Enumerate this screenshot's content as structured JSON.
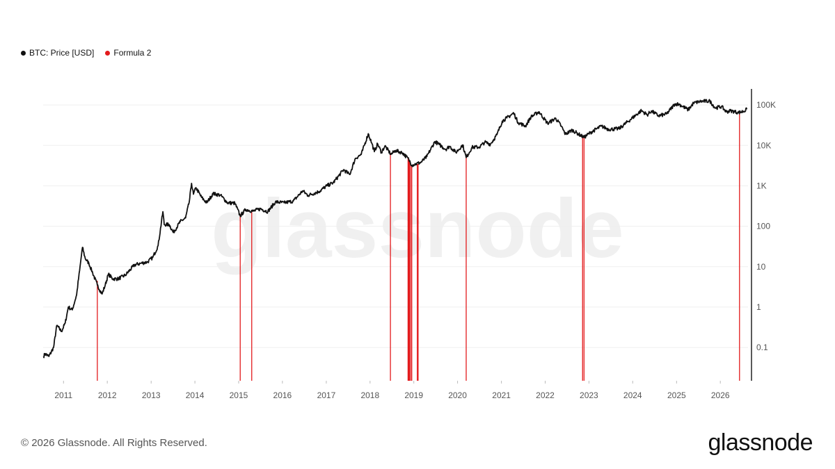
{
  "legend": [
    {
      "label": "BTC: Price [USD]",
      "color": "#111111"
    },
    {
      "label": "Formula 2",
      "color": "#e31a1c"
    }
  ],
  "watermark": "glassnode",
  "footer": {
    "copyright": "© 2026 Glassnode. All Rights Reserved.",
    "logo": "glassnode"
  },
  "chart_data": {
    "type": "line",
    "title": "",
    "xlabel": "",
    "ylabel": "",
    "y_scale": "log",
    "ylim": [
      0.015,
      250000
    ],
    "xlim": [
      "2010-07-15",
      "2026-08-20"
    ],
    "grid": true,
    "legend_position": "top-left",
    "x_ticks": [
      "2011",
      "2012",
      "2013",
      "2014",
      "2015",
      "2016",
      "2017",
      "2018",
      "2019",
      "2020",
      "2021",
      "2022",
      "2023",
      "2024",
      "2025",
      "2026"
    ],
    "y_ticks": [
      {
        "label": "0.1",
        "value": 0.1
      },
      {
        "label": "1",
        "value": 1
      },
      {
        "label": "10",
        "value": 10
      },
      {
        "label": "100",
        "value": 100
      },
      {
        "label": "1K",
        "value": 1000
      },
      {
        "label": "10K",
        "value": 10000
      },
      {
        "label": "100K",
        "value": 100000
      }
    ],
    "series": [
      {
        "name": "BTC: Price [USD]",
        "color": "#111111",
        "points": [
          [
            "2010-07-18",
            0.06
          ],
          [
            "2010-08-01",
            0.07
          ],
          [
            "2010-09-01",
            0.06
          ],
          [
            "2010-10-10",
            0.1
          ],
          [
            "2010-11-06",
            0.35
          ],
          [
            "2010-12-15",
            0.25
          ],
          [
            "2011-01-15",
            0.4
          ],
          [
            "2011-02-10",
            1.0
          ],
          [
            "2011-03-15",
            0.85
          ],
          [
            "2011-04-20",
            2.0
          ],
          [
            "2011-05-15",
            8.0
          ],
          [
            "2011-06-08",
            30.0
          ],
          [
            "2011-07-01",
            16.0
          ],
          [
            "2011-08-01",
            12.0
          ],
          [
            "2011-09-01",
            7.0
          ],
          [
            "2011-10-10",
            3.5
          ],
          [
            "2011-11-18",
            2.1
          ],
          [
            "2011-12-15",
            3.5
          ],
          [
            "2012-01-10",
            6.5
          ],
          [
            "2012-02-15",
            5.0
          ],
          [
            "2012-04-01",
            5.0
          ],
          [
            "2012-06-01",
            6.2
          ],
          [
            "2012-08-15",
            11.0
          ],
          [
            "2012-10-01",
            12.0
          ],
          [
            "2012-12-01",
            13.0
          ],
          [
            "2013-01-15",
            17.0
          ],
          [
            "2013-02-28",
            33.0
          ],
          [
            "2013-04-09",
            230.0
          ],
          [
            "2013-04-20",
            110.0
          ],
          [
            "2013-06-01",
            110.0
          ],
          [
            "2013-07-05",
            70.0
          ],
          [
            "2013-09-01",
            130.0
          ],
          [
            "2013-10-15",
            160.0
          ],
          [
            "2013-11-15",
            400.0
          ],
          [
            "2013-12-04",
            1150.0
          ],
          [
            "2013-12-20",
            620.0
          ],
          [
            "2014-01-10",
            900.0
          ],
          [
            "2014-02-25",
            520.0
          ],
          [
            "2014-04-10",
            380.0
          ],
          [
            "2014-06-01",
            640.0
          ],
          [
            "2014-08-01",
            590.0
          ],
          [
            "2014-10-01",
            380.0
          ],
          [
            "2014-12-01",
            370.0
          ],
          [
            "2015-01-14",
            180.0
          ],
          [
            "2015-03-01",
            260.0
          ],
          [
            "2015-05-01",
            235.0
          ],
          [
            "2015-07-01",
            270.0
          ],
          [
            "2015-09-01",
            230.0
          ],
          [
            "2015-11-04",
            400.0
          ],
          [
            "2016-01-15",
            380.0
          ],
          [
            "2016-04-01",
            420.0
          ],
          [
            "2016-06-18",
            750.0
          ],
          [
            "2016-08-01",
            580.0
          ],
          [
            "2016-11-01",
            720.0
          ],
          [
            "2017-01-05",
            1000.0
          ],
          [
            "2017-03-01",
            1200.0
          ],
          [
            "2017-05-25",
            2500.0
          ],
          [
            "2017-07-15",
            1900.0
          ],
          [
            "2017-09-01",
            4800.0
          ],
          [
            "2017-10-20",
            6000.0
          ],
          [
            "2017-12-17",
            19500.0
          ],
          [
            "2018-01-15",
            11500.0
          ],
          [
            "2018-02-06",
            7000.0
          ],
          [
            "2018-03-05",
            11000.0
          ],
          [
            "2018-04-06",
            6700.0
          ],
          [
            "2018-05-05",
            9700.0
          ],
          [
            "2018-06-25",
            6000.0
          ],
          [
            "2018-08-01",
            7500.0
          ],
          [
            "2018-10-01",
            6500.0
          ],
          [
            "2018-11-20",
            4500.0
          ],
          [
            "2018-12-15",
            3250.0
          ],
          [
            "2019-01-20",
            3500.0
          ],
          [
            "2019-03-01",
            3800.0
          ],
          [
            "2019-04-20",
            5300.0
          ],
          [
            "2019-06-26",
            12500.0
          ],
          [
            "2019-08-01",
            10500.0
          ],
          [
            "2019-09-25",
            8000.0
          ],
          [
            "2019-10-27",
            9500.0
          ],
          [
            "2019-12-18",
            6700.0
          ],
          [
            "2020-02-13",
            10300.0
          ],
          [
            "2020-03-13",
            5000.0
          ],
          [
            "2020-05-01",
            9000.0
          ],
          [
            "2020-07-01",
            9100.0
          ],
          [
            "2020-08-15",
            12000.0
          ],
          [
            "2020-10-01",
            10700.0
          ],
          [
            "2020-11-25",
            18500.0
          ],
          [
            "2021-01-08",
            40000.0
          ],
          [
            "2021-02-15",
            48000.0
          ],
          [
            "2021-04-14",
            63000.0
          ],
          [
            "2021-05-20",
            37000.0
          ],
          [
            "2021-07-20",
            30000.0
          ],
          [
            "2021-09-05",
            51000.0
          ],
          [
            "2021-11-10",
            68000.0
          ],
          [
            "2022-01-22",
            35000.0
          ],
          [
            "2022-03-30",
            47000.0
          ],
          [
            "2022-05-15",
            30000.0
          ],
          [
            "2022-06-18",
            19000.0
          ],
          [
            "2022-08-15",
            24000.0
          ],
          [
            "2022-10-01",
            19500.0
          ],
          [
            "2022-11-21",
            15800.0
          ],
          [
            "2023-01-15",
            21000.0
          ],
          [
            "2023-04-15",
            30000.0
          ],
          [
            "2023-06-15",
            25000.0
          ],
          [
            "2023-09-10",
            26000.0
          ],
          [
            "2023-12-10",
            43000.0
          ],
          [
            "2024-03-14",
            73000.0
          ],
          [
            "2024-05-01",
            57000.0
          ],
          [
            "2024-06-05",
            71000.0
          ],
          [
            "2024-08-05",
            54000.0
          ],
          [
            "2024-10-10",
            60000.0
          ],
          [
            "2024-12-17",
            106000.0
          ],
          [
            "2025-01-21",
            105000.0
          ],
          [
            "2025-04-08",
            76000.0
          ],
          [
            "2025-05-22",
            111000.0
          ],
          [
            "2025-07-14",
            122000.0
          ],
          [
            "2025-08-14",
            124000.0
          ],
          [
            "2025-10-06",
            125000.0
          ],
          [
            "2025-11-21",
            84000.0
          ],
          [
            "2026-01-10",
            92000.0
          ],
          [
            "2026-02-20",
            68000.0
          ],
          [
            "2026-04-01",
            72000.0
          ],
          [
            "2026-06-01",
            65000.0
          ],
          [
            "2026-07-15",
            70000.0
          ],
          [
            "2026-08-10",
            78000.0
          ]
        ]
      },
      {
        "name": "Formula 2",
        "color": "#e31a1c",
        "signal_dates": [
          [
            "2011-10-10",
            4.5
          ],
          [
            "2015-01-14",
            200.0
          ],
          [
            "2015-04-20",
            250.0
          ],
          [
            "2018-06-20",
            6500.0
          ],
          [
            "2018-11-14",
            5000.0
          ],
          [
            "2018-11-18",
            4800.0
          ],
          [
            "2018-11-22",
            4400.0
          ],
          [
            "2018-11-26",
            4000.0
          ],
          [
            "2018-12-05",
            3600.0
          ],
          [
            "2018-12-15",
            3300.0
          ],
          [
            "2019-01-30",
            3500.0
          ],
          [
            "2019-02-06",
            3500.0
          ],
          [
            "2020-03-13",
            5000.0
          ],
          [
            "2022-11-09",
            17000.0
          ],
          [
            "2022-11-21",
            15800.0
          ],
          [
            "2026-06-10",
            65000.0
          ]
        ]
      }
    ]
  }
}
